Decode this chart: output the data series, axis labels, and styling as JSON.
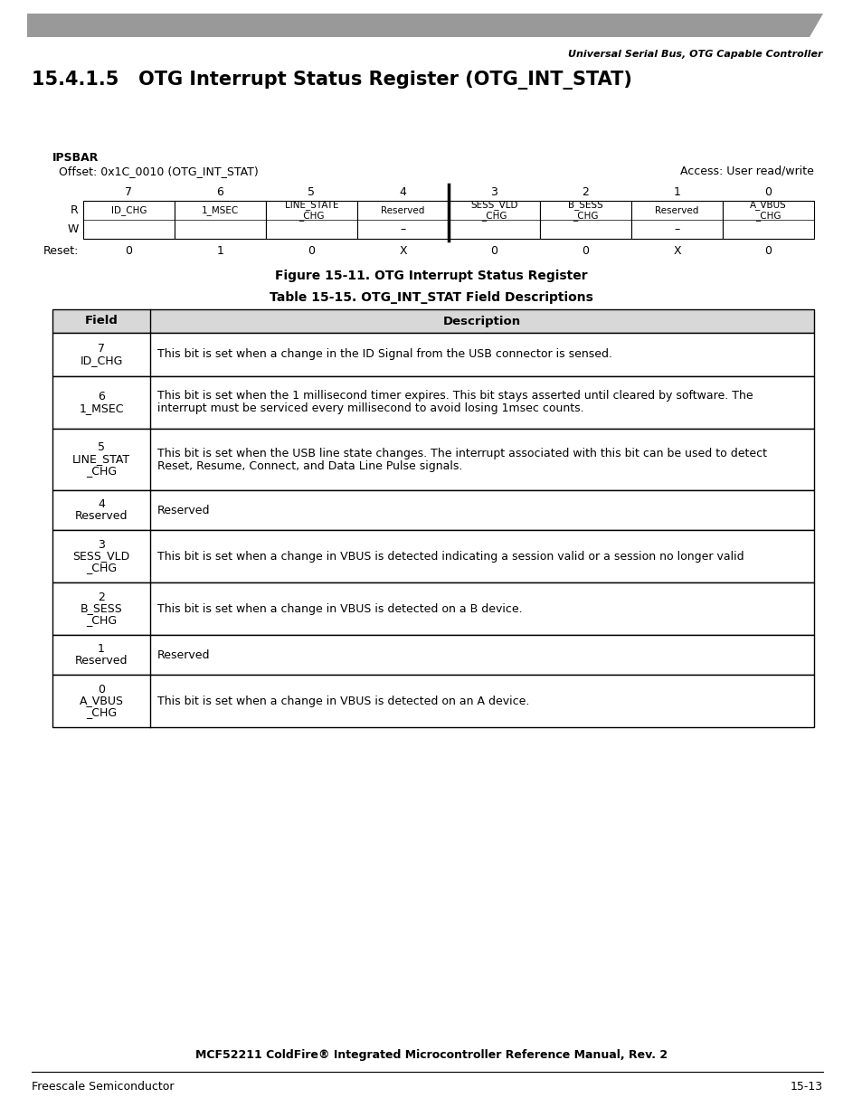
{
  "header_bar_color": "#999999",
  "page_title": "Universal Serial Bus, OTG Capable Controller",
  "section_title": "15.4.1.5   OTG Interrupt Status Register (OTG_INT_STAT)",
  "ipsbar": "IPSBAR",
  "offset": "Offset: 0x1C_0010 (OTG_INT_STAT)",
  "access": "Access: User read/write",
  "bit_numbers": [
    "7",
    "6",
    "5",
    "4",
    "3",
    "2",
    "1",
    "0"
  ],
  "reg_fields_r": [
    "ID_CHG",
    "1_MSEC",
    "LINE_STATE\n_CHG",
    "Reserved",
    "SESS_VLD\n_CHG",
    "B_SESS\n_CHG",
    "Reserved",
    "A_VBUS\n_CHG"
  ],
  "reg_fields_w": [
    "",
    "",
    "",
    "–",
    "",
    "",
    "–",
    ""
  ],
  "reset_values": [
    "0",
    "1",
    "0",
    "X",
    "0",
    "0",
    "X",
    "0"
  ],
  "figure_caption": "Figure 15-11. OTG Interrupt Status Register",
  "table_title": "Table 15-15. OTG_INT_STAT Field Descriptions",
  "table_fields": [
    {
      "field": "7\nID_CHG",
      "description": "This bit is set when a change in the ID Signal from the USB connector is sensed."
    },
    {
      "field": "6\n1_MSEC",
      "description": "This bit is set when the 1 millisecond timer expires. This bit stays asserted until cleared by software. The\ninterrupt must be serviced every millisecond to avoid losing 1msec counts."
    },
    {
      "field": "5\nLINE_STAT\n_CHG",
      "description": "This bit is set when the USB line state changes. The interrupt associated with this bit can be used to detect\nReset, Resume, Connect, and Data Line Pulse signals."
    },
    {
      "field": "4\nReserved",
      "description": "Reserved"
    },
    {
      "field": "3\nSESS_VLD\n_CHG",
      "description": "This bit is set when a change in VBUS is detected indicating a session valid or a session no longer valid"
    },
    {
      "field": "2\nB_SESS\n_CHG",
      "description": "This bit is set when a change in VBUS is detected on a B device."
    },
    {
      "field": "1\nReserved",
      "description": "Reserved"
    },
    {
      "field": "0\nA_VBUS\n_CHG",
      "description": "This bit is set when a change in VBUS is detected on an A device."
    }
  ],
  "footer_center": "MCF52211 ColdFire® Integrated Microcontroller Reference Manual, Rev. 2",
  "footer_left": "Freescale Semiconductor",
  "footer_right": "15-13"
}
